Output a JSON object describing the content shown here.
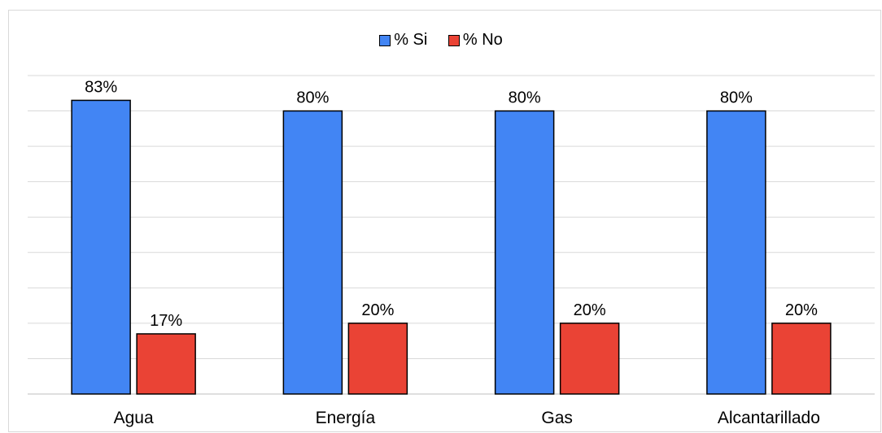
{
  "chart_data": {
    "type": "bar",
    "categories": [
      "Agua",
      "Energía",
      "Gas",
      "Alcantarillado"
    ],
    "series": [
      {
        "name": "% Si",
        "values": [
          83,
          80,
          80,
          80
        ],
        "labels": [
          "83%",
          "80%",
          "80%",
          "80%"
        ],
        "color": "#4285F4"
      },
      {
        "name": "% No",
        "values": [
          17,
          20,
          20,
          20
        ],
        "labels": [
          "17%",
          "20%",
          "20%",
          "20%"
        ],
        "color": "#EA4335"
      }
    ],
    "ylim": [
      0,
      90
    ],
    "grid": true,
    "legend_position": "top-center"
  }
}
